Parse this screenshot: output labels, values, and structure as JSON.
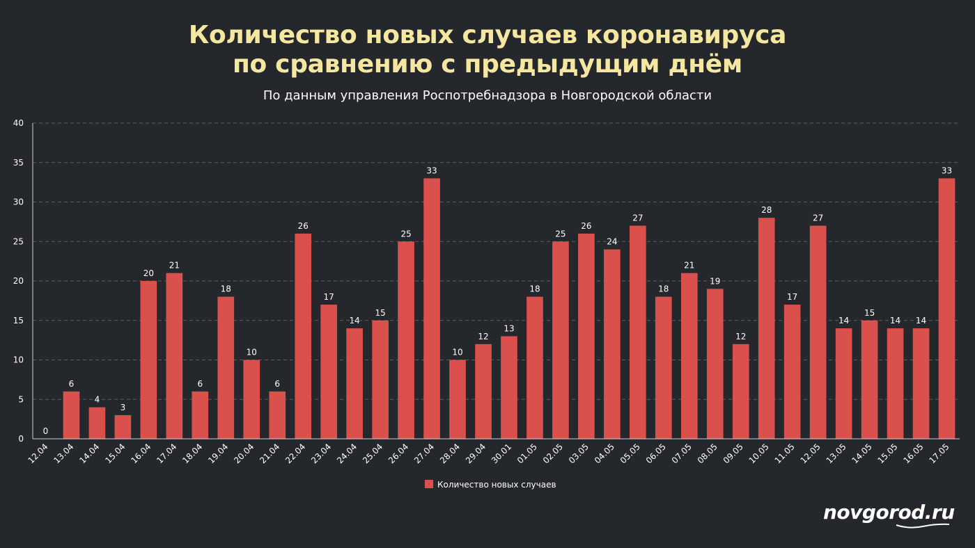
{
  "header": {
    "title_line1": "Количество новых случаев коронавируса",
    "title_line2": "по сравнению с предыдущим днём",
    "subtitle": "По данным управления Роспотребнадзора в Новгородской области"
  },
  "brand": {
    "name": "novgorod.ru"
  },
  "colors": {
    "background": "#24272b",
    "bar": "#d9504c",
    "title": "#f6e7a0",
    "grid": "#5a5d61"
  },
  "chart_data": {
    "type": "bar",
    "title": "Количество новых случаев коронавируса по сравнению с предыдущим днём",
    "subtitle": "По данным управления Роспотребнадзора в Новгородской области",
    "categories": [
      "12.04",
      "13.04",
      "14.04",
      "15.04",
      "16.04",
      "17.04",
      "18.04",
      "19.04",
      "20.04",
      "21.04",
      "22.04",
      "23.04",
      "24.04",
      "25.04",
      "26.04",
      "27.04",
      "28.04",
      "29.04",
      "30.01",
      "01.05",
      "02.05",
      "03.05",
      "04.05",
      "05.05",
      "06.05",
      "07.05",
      "08.05",
      "09.05",
      "10.05",
      "11.05",
      "12.05",
      "13.05",
      "14.05",
      "15.05",
      "16.05",
      "17.05"
    ],
    "series": [
      {
        "name": "Количество новых случаев",
        "values": [
          0,
          6,
          4,
          3,
          20,
          21,
          6,
          18,
          10,
          6,
          26,
          17,
          14,
          15,
          25,
          33,
          10,
          12,
          13,
          18,
          25,
          26,
          24,
          27,
          18,
          21,
          19,
          12,
          28,
          17,
          27,
          14,
          15,
          14,
          14,
          33
        ]
      }
    ],
    "yticks": [
      0,
      5,
      10,
      15,
      20,
      25,
      30,
      35,
      40
    ],
    "ylim": [
      0,
      40
    ],
    "grid": true,
    "legend": "bottom-center"
  }
}
